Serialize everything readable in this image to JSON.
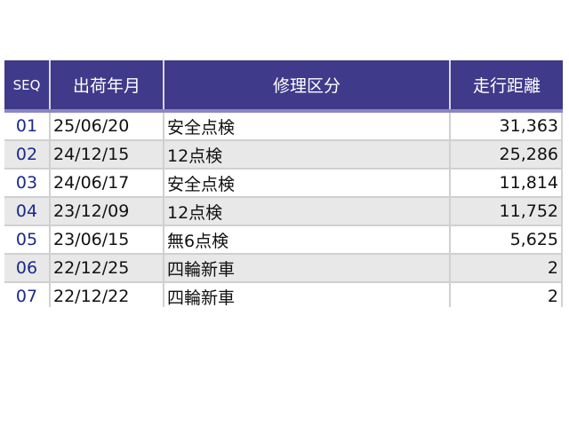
{
  "table": {
    "headers": [
      "SEQ",
      "出荷年月",
      "修理区分",
      "走行距離"
    ],
    "rows": [
      [
        "01",
        "25/06/20",
        "安全点検",
        "31,363"
      ],
      [
        "02",
        "24/12/15",
        "12点検",
        "25,286"
      ],
      [
        "03",
        "24/06/17",
        "安全点検",
        "11,814"
      ],
      [
        "04",
        "23/12/09",
        "12点検",
        "11,752"
      ],
      [
        "05",
        "23/06/15",
        "無6点検",
        "5,625"
      ],
      [
        "06",
        "22/12/25",
        "四輪新車",
        "2"
      ],
      [
        "07",
        "22/12/22",
        "四輪新車",
        "2"
      ]
    ]
  },
  "colors": {
    "header_bg": "#3f3a8a",
    "alt_row": "#e8e8e8",
    "seq_text": "#1a2a8a"
  }
}
